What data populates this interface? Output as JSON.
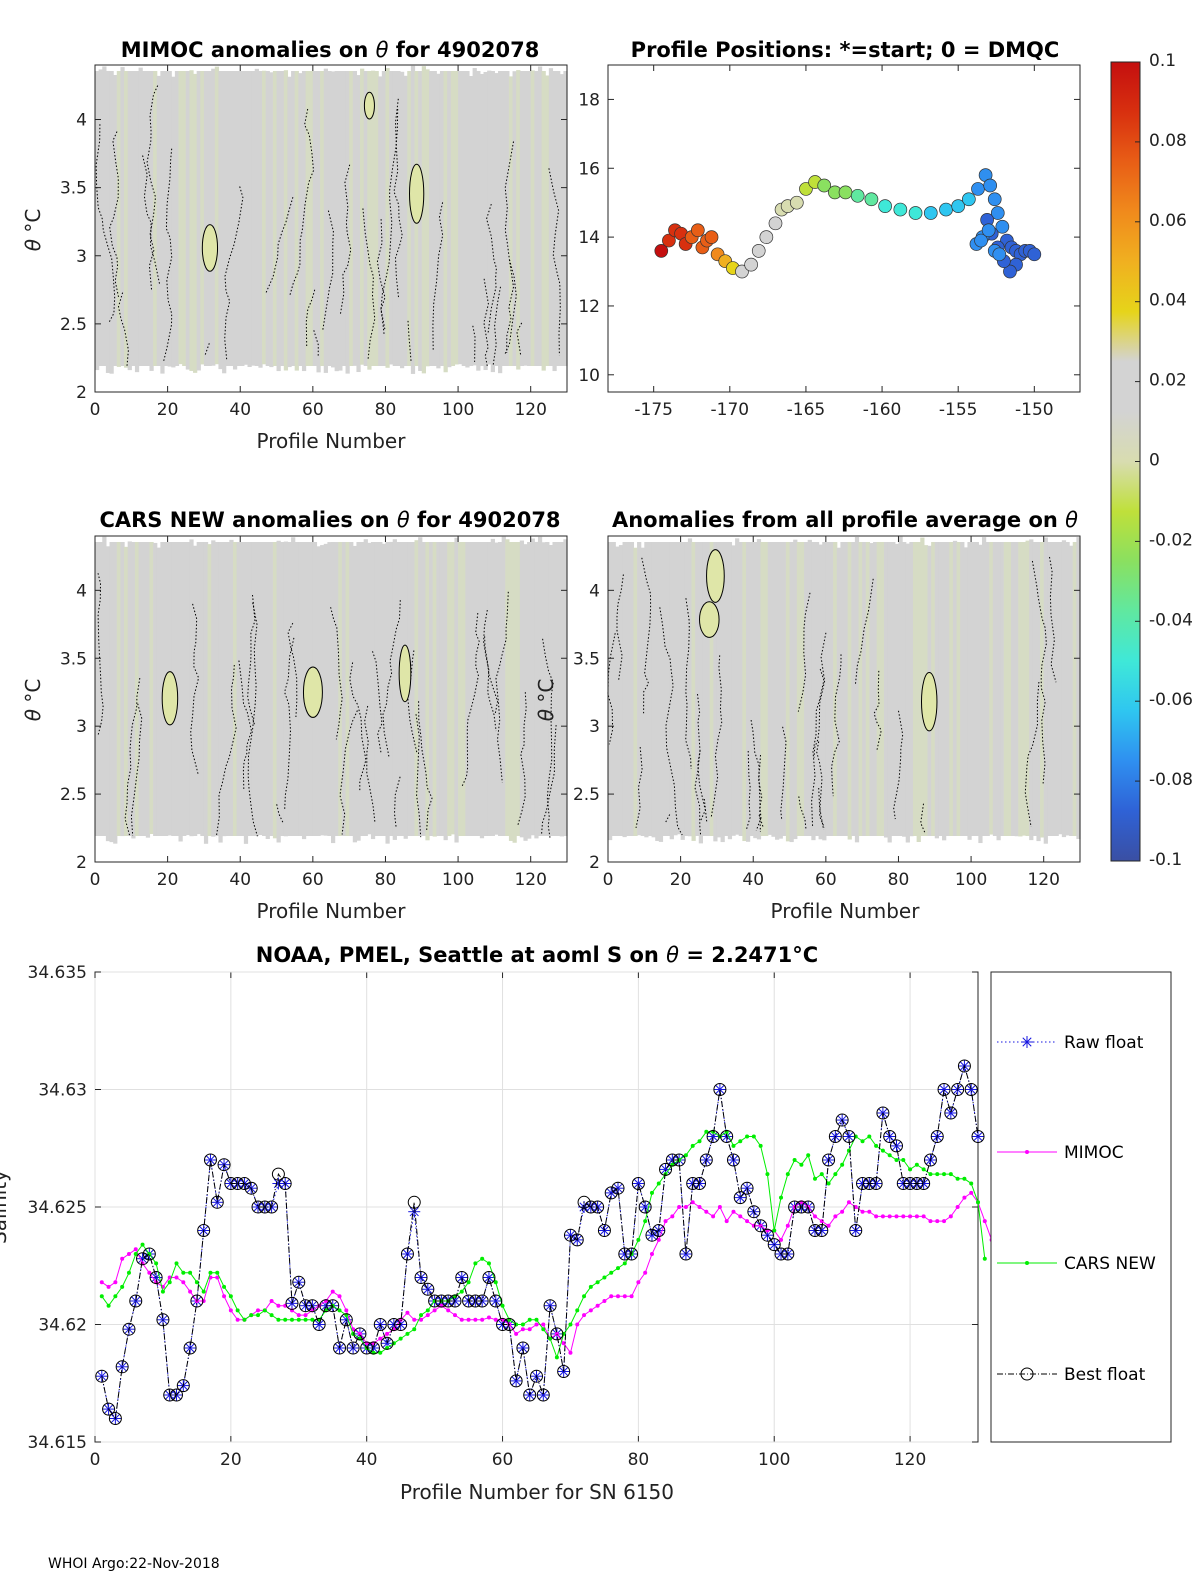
{
  "footer": "WHOI Argo:22-Nov-2018",
  "colorbar": {
    "ticks": [
      "0.1",
      "0.08",
      "0.06",
      "0.04",
      "0.02",
      "0",
      "-0.02",
      "-0.04",
      "-0.06",
      "-0.08",
      "-0.1"
    ],
    "min": -0.1,
    "max": 0.1,
    "colors": [
      "#3a4fa3",
      "#2f62d6",
      "#2f8ff0",
      "#2fc6f0",
      "#3fe8d8",
      "#60e8a0",
      "#8ae060",
      "#bfe03a",
      "#d8dcb0",
      "#d3d3d3",
      "#d3d3d3",
      "#e6d41a",
      "#f0b020",
      "#f08a1c",
      "#e85e16",
      "#d8300f",
      "#c40f0f"
    ]
  },
  "chart_data": [
    {
      "id": "mimoc",
      "type": "heatmap",
      "title_prefix": "MIMOC anomalies on ",
      "title_symbol": "θ",
      "title_suffix": "  for 4902078",
      "xlabel": "Profile Number",
      "ylabel_symbol": "θ",
      "ylabel_unit": "°C",
      "xlim": [
        0,
        130
      ],
      "ylim": [
        2,
        4.4
      ],
      "xticks": [
        "0",
        "20",
        "40",
        "60",
        "80",
        "100",
        "120"
      ],
      "yticks": [
        "2",
        "2.5",
        "3",
        "3.5",
        "4"
      ]
    },
    {
      "id": "positions",
      "type": "scatter",
      "title": "Profile Positions: *=start; 0 = DMQC",
      "xlim": [
        -178,
        -147
      ],
      "ylim": [
        9.5,
        19
      ],
      "xticks": [
        "-175",
        "-170",
        "-165",
        "-160",
        "-155",
        "-150"
      ],
      "yticks": [
        "10",
        "12",
        "14",
        "16",
        "18"
      ],
      "lon": [
        -174.5,
        -174.0,
        -173.6,
        -173.2,
        -172.9,
        -172.5,
        -172.1,
        -171.8,
        -171.5,
        -171.2,
        -170.8,
        -170.3,
        -169.8,
        -169.2,
        -168.6,
        -168.1,
        -167.6,
        -167.0,
        -166.6,
        -166.2,
        -165.6,
        -165.0,
        -164.4,
        -163.8,
        -163.1,
        -162.4,
        -161.6,
        -160.7,
        -159.8,
        -158.8,
        -157.8,
        -156.8,
        -155.8,
        -155.0,
        -154.3,
        -153.7,
        -153.2,
        -152.9,
        -152.6,
        -152.4,
        -152.1,
        -151.8,
        -151.5,
        -151.2,
        -150.9,
        -150.6,
        -150.3,
        -150.0,
        -151.2,
        -151.6,
        -152.0,
        -152.4,
        -152.8,
        -153.1,
        -153.4,
        -153.8,
        -153.5,
        -153.0,
        -152.6,
        -152.3
      ],
      "lat": [
        13.6,
        13.9,
        14.2,
        14.1,
        13.8,
        14.0,
        14.2,
        13.7,
        13.9,
        14.0,
        13.5,
        13.3,
        13.1,
        13.0,
        13.2,
        13.6,
        14.0,
        14.4,
        14.8,
        14.9,
        15.0,
        15.4,
        15.6,
        15.5,
        15.3,
        15.3,
        15.2,
        15.1,
        14.9,
        14.8,
        14.7,
        14.7,
        14.8,
        14.9,
        15.1,
        15.4,
        15.8,
        15.5,
        15.1,
        14.7,
        14.3,
        13.9,
        13.7,
        13.6,
        13.5,
        13.6,
        13.6,
        13.5,
        13.2,
        13.0,
        13.3,
        13.7,
        14.1,
        14.5,
        14.0,
        13.8,
        13.9,
        14.2,
        13.6,
        13.5
      ],
      "values": [
        0.095,
        0.09,
        0.088,
        0.085,
        0.082,
        0.08,
        0.078,
        0.075,
        0.072,
        0.07,
        0.06,
        0.045,
        0.035,
        0.03,
        0.025,
        0.02,
        0.015,
        0.01,
        0.005,
        0.0,
        -0.005,
        -0.01,
        -0.015,
        -0.02,
        -0.025,
        -0.03,
        -0.035,
        -0.04,
        -0.045,
        -0.05,
        -0.055,
        -0.06,
        -0.062,
        -0.065,
        -0.068,
        -0.07,
        -0.072,
        -0.074,
        -0.076,
        -0.078,
        -0.08,
        -0.082,
        -0.084,
        -0.085,
        -0.086,
        -0.087,
        -0.088,
        -0.089,
        -0.09,
        -0.09,
        -0.088,
        -0.086,
        -0.084,
        -0.082,
        -0.08,
        -0.078,
        -0.076,
        -0.074,
        -0.072,
        -0.07
      ]
    },
    {
      "id": "cars",
      "type": "heatmap",
      "title_prefix": "CARS NEW anomalies on ",
      "title_symbol": "θ",
      "title_suffix": " for 4902078",
      "xlabel": "Profile Number",
      "ylabel_symbol": "θ",
      "ylabel_unit": "°C",
      "xlim": [
        0,
        130
      ],
      "ylim": [
        2,
        4.4
      ],
      "xticks": [
        "0",
        "20",
        "40",
        "60",
        "80",
        "100",
        "120"
      ],
      "yticks": [
        "2",
        "2.5",
        "3",
        "3.5",
        "4"
      ]
    },
    {
      "id": "allavg",
      "type": "heatmap",
      "title_prefix": "Anomalies from all profile average on ",
      "title_symbol": "θ",
      "title_suffix": "",
      "xlabel": "Profile Number",
      "ylabel_symbol": "θ",
      "ylabel_unit": "°C",
      "xlim": [
        0,
        130
      ],
      "ylim": [
        2,
        4.4
      ],
      "xticks": [
        "0",
        "20",
        "40",
        "60",
        "80",
        "100",
        "120"
      ],
      "yticks": [
        "2",
        "2.5",
        "3",
        "3.5",
        "4"
      ]
    },
    {
      "id": "salinity",
      "type": "line",
      "title_prefix": "NOAA, PMEL, Seattle at aoml S on ",
      "title_symbol": "θ",
      "title_suffix": " = 2.2471",
      "title_unit": "°C",
      "xlabel": "Profile Number for SN 6150",
      "ylabel": "Salinity",
      "xlim": [
        0,
        130
      ],
      "ylim": [
        34.615,
        34.635
      ],
      "xticks": [
        "0",
        "20",
        "40",
        "60",
        "80",
        "100",
        "120"
      ],
      "yticks": [
        "34.615",
        "34.62",
        "34.625",
        "34.63",
        "34.635"
      ],
      "series": [
        {
          "name": "Raw float",
          "values": [
            34.6178,
            34.6164,
            34.616,
            34.6182,
            34.6198,
            34.621,
            34.6228,
            34.623,
            34.622,
            34.6202,
            34.617,
            34.617,
            34.6174,
            34.619,
            34.621,
            34.624,
            34.627,
            34.6252,
            34.6268,
            34.626,
            34.626,
            34.626,
            34.6258,
            34.625,
            34.625,
            34.625,
            34.626,
            34.626,
            34.6209,
            34.6218,
            34.6208,
            34.6208,
            34.62,
            34.6208,
            34.6208,
            34.619,
            34.6202,
            34.619,
            34.6196,
            34.619,
            34.619,
            34.62,
            34.6192,
            34.62,
            34.62,
            34.623,
            34.6248,
            34.622,
            34.6215,
            34.621,
            34.621,
            34.621,
            34.621,
            34.622,
            34.621,
            34.621,
            34.621,
            34.622,
            34.621,
            34.62,
            34.62,
            34.6176,
            34.619,
            34.617,
            34.6178,
            34.617,
            34.6208,
            34.6196,
            34.618,
            34.6238,
            34.6236,
            34.625,
            34.625,
            34.625,
            34.624,
            34.6256,
            34.6258,
            34.623,
            34.623,
            34.626,
            34.625,
            34.6238,
            34.624,
            34.6266,
            34.627,
            34.627,
            34.623,
            34.626,
            34.626,
            34.627,
            34.628,
            34.63,
            34.628,
            34.627,
            34.6254,
            34.6258,
            34.6248,
            34.6242,
            34.6238,
            34.6234,
            34.623,
            34.623,
            34.625,
            34.625,
            34.625,
            34.624,
            34.624,
            34.627,
            34.628,
            34.6287,
            34.628,
            34.624,
            34.626,
            34.626,
            34.626,
            34.629,
            34.628,
            34.6276,
            34.626,
            34.626,
            34.626,
            34.626,
            34.627,
            34.628,
            34.63,
            34.629,
            34.63,
            34.631,
            34.63,
            34.628
          ]
        },
        {
          "name": "MIMOC",
          "values": [
            34.6218,
            34.6216,
            34.6218,
            34.6228,
            34.623,
            34.6232,
            34.6226,
            34.6222,
            34.6218,
            34.6216,
            34.622,
            34.622,
            34.6218,
            34.6214,
            34.621,
            34.621,
            34.622,
            34.622,
            34.6212,
            34.6206,
            34.6202,
            34.6202,
            34.6204,
            34.6206,
            34.6206,
            34.621,
            34.6208,
            34.6208,
            34.6206,
            34.6204,
            34.6204,
            34.6206,
            34.6208,
            34.621,
            34.6214,
            34.6212,
            34.6206,
            34.6198,
            34.6196,
            34.6192,
            34.6192,
            34.6194,
            34.6196,
            34.6198,
            34.6202,
            34.6205,
            34.6202,
            34.6202,
            34.6204,
            34.6206,
            34.6208,
            34.6206,
            34.6204,
            34.6202,
            34.6202,
            34.6202,
            34.6202,
            34.6203,
            34.6202,
            34.6202,
            34.62,
            34.6196,
            34.6198,
            34.6198,
            34.62,
            34.62,
            34.6194,
            34.6196,
            34.6192,
            34.6188,
            34.62,
            34.6204,
            34.6206,
            34.6208,
            34.621,
            34.6212,
            34.6212,
            34.6212,
            34.6212,
            34.6218,
            34.6222,
            34.623,
            34.6236,
            34.6244,
            34.6246,
            34.625,
            34.625,
            34.6252,
            34.625,
            34.6248,
            34.6246,
            34.625,
            34.6244,
            34.6248,
            34.6246,
            34.6244,
            34.6242,
            34.6242,
            34.624,
            34.624,
            34.6236,
            34.6242,
            34.625,
            34.6252,
            34.625,
            34.6246,
            34.6244,
            34.6242,
            34.6246,
            34.6248,
            34.6252,
            34.625,
            34.6248,
            34.6248,
            34.6246,
            34.6246,
            34.6246,
            34.6246,
            34.6246,
            34.6246,
            34.6246,
            34.6246,
            34.6244,
            34.6244,
            34.6244,
            34.6246,
            34.625,
            34.6254,
            34.6256,
            34.6252,
            34.6244,
            34.6236
          ]
        },
        {
          "name": "CARS NEW",
          "values": [
            34.6212,
            34.6208,
            34.6212,
            34.6216,
            34.6222,
            34.623,
            34.6234,
            34.623,
            34.6226,
            34.6214,
            34.6218,
            34.6226,
            34.6222,
            34.6222,
            34.6218,
            34.6214,
            34.6222,
            34.6222,
            34.6216,
            34.6212,
            34.6206,
            34.6202,
            34.6204,
            34.6204,
            34.6206,
            34.6204,
            34.6202,
            34.6202,
            34.6202,
            34.6202,
            34.6202,
            34.6202,
            34.6202,
            34.6206,
            34.6208,
            34.6206,
            34.6204,
            34.6196,
            34.6194,
            34.619,
            34.6188,
            34.6188,
            34.619,
            34.6192,
            34.6194,
            34.6196,
            34.6198,
            34.6204,
            34.6206,
            34.621,
            34.621,
            34.621,
            34.6212,
            34.6214,
            34.6218,
            34.6226,
            34.6228,
            34.6226,
            34.6218,
            34.6208,
            34.6202,
            34.62,
            34.62,
            34.6202,
            34.6202,
            34.6198,
            34.6194,
            34.6186,
            34.6196,
            34.62,
            34.6206,
            34.6212,
            34.6216,
            34.6218,
            34.622,
            34.6222,
            34.6224,
            34.6226,
            34.623,
            34.6236,
            34.6244,
            34.6256,
            34.626,
            34.6264,
            34.6268,
            34.627,
            34.6272,
            34.6276,
            34.6278,
            34.6282,
            34.6282,
            34.628,
            34.6282,
            34.6276,
            34.6278,
            34.628,
            34.628,
            34.6276,
            34.6264,
            34.624,
            34.6254,
            34.6264,
            34.627,
            34.6268,
            34.6272,
            34.6262,
            34.6264,
            34.626,
            34.6264,
            34.6268,
            34.6274,
            34.628,
            34.6278,
            34.628,
            34.6276,
            34.6274,
            34.6272,
            34.627,
            34.627,
            34.6266,
            34.6268,
            34.6266,
            34.6264,
            34.6264,
            34.6264,
            34.6264,
            34.6262,
            34.6262,
            34.626,
            34.6252,
            34.6228
          ]
        },
        {
          "name": "Best float",
          "values": [
            34.6178,
            34.6164,
            34.616,
            34.6182,
            34.6198,
            34.621,
            34.6228,
            34.623,
            34.622,
            34.6202,
            34.617,
            34.617,
            34.6174,
            34.619,
            34.621,
            34.624,
            34.627,
            34.6252,
            34.6268,
            34.626,
            34.626,
            34.626,
            34.6258,
            34.625,
            34.625,
            34.625,
            34.6264,
            34.626,
            34.6209,
            34.6218,
            34.6208,
            34.6208,
            34.62,
            34.6208,
            34.6208,
            34.619,
            34.6202,
            34.619,
            34.6196,
            34.619,
            34.619,
            34.62,
            34.6192,
            34.62,
            34.62,
            34.623,
            34.6252,
            34.622,
            34.6215,
            34.621,
            34.621,
            34.621,
            34.621,
            34.622,
            34.621,
            34.621,
            34.621,
            34.622,
            34.621,
            34.62,
            34.62,
            34.6176,
            34.619,
            34.617,
            34.6178,
            34.617,
            34.6208,
            34.6196,
            34.618,
            34.6238,
            34.6236,
            34.6252,
            34.625,
            34.625,
            34.624,
            34.6256,
            34.6258,
            34.623,
            34.623,
            34.626,
            34.625,
            34.6238,
            34.624,
            34.6266,
            34.627,
            34.627,
            34.623,
            34.626,
            34.626,
            34.627,
            34.628,
            34.63,
            34.628,
            34.627,
            34.6254,
            34.6258,
            34.6248,
            34.6242,
            34.6238,
            34.6234,
            34.623,
            34.623,
            34.625,
            34.625,
            34.625,
            34.624,
            34.624,
            34.627,
            34.628,
            34.6287,
            34.628,
            34.624,
            34.626,
            34.626,
            34.626,
            34.629,
            34.628,
            34.6276,
            34.626,
            34.626,
            34.626,
            34.626,
            34.627,
            34.628,
            34.63,
            34.629,
            34.63,
            34.631,
            34.63,
            34.628
          ]
        }
      ]
    }
  ]
}
